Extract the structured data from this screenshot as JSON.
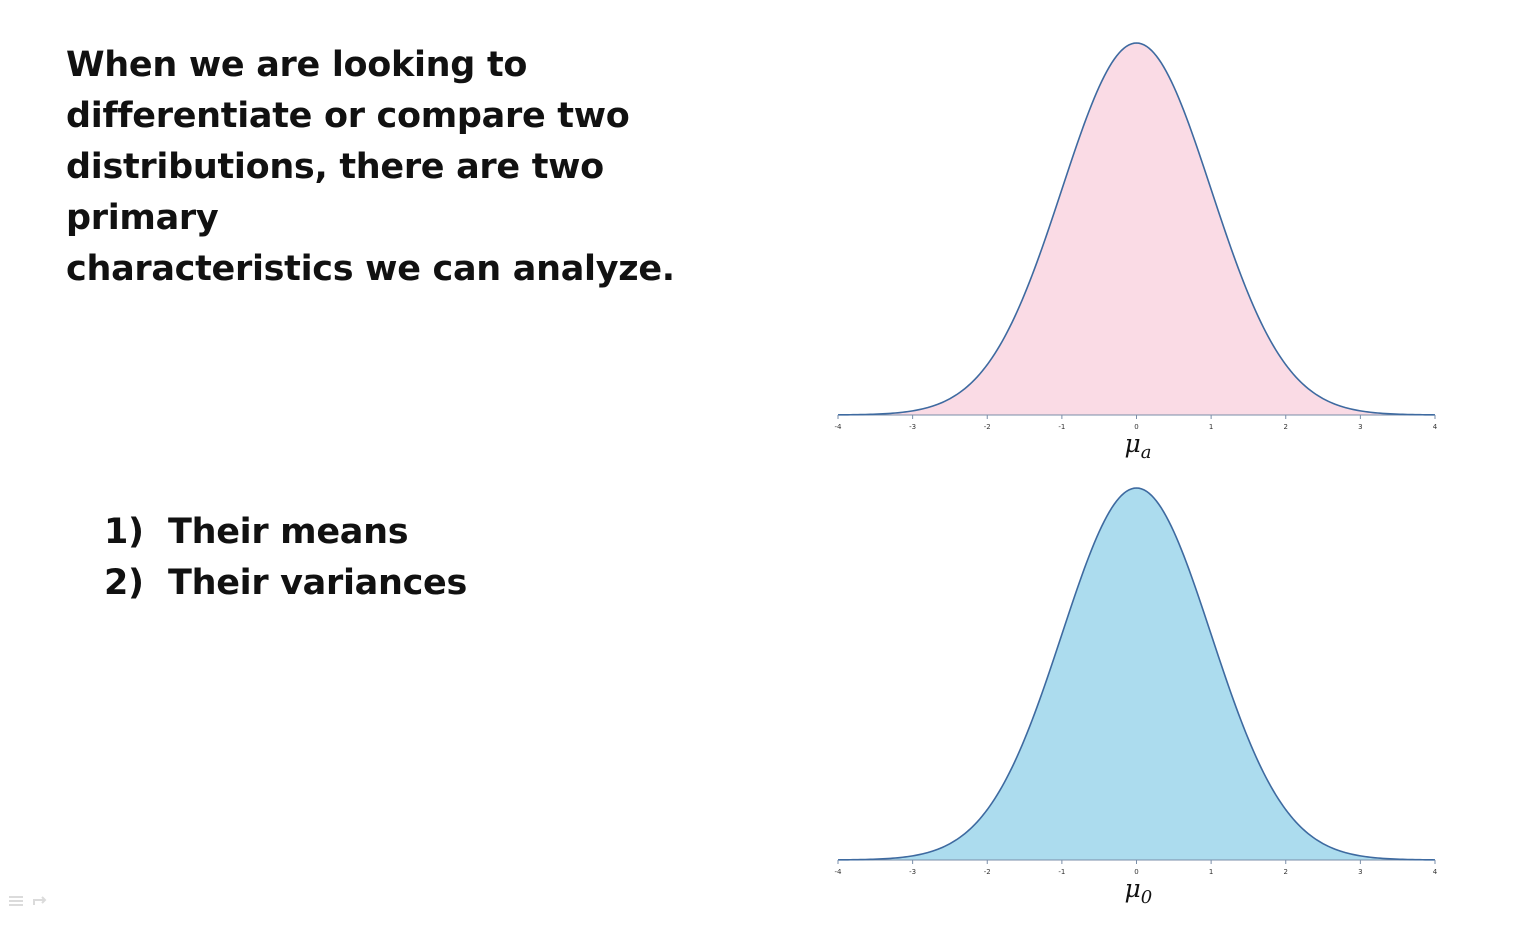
{
  "slide": {
    "intro_text": "When we are looking  to\ndifferentiate or compare two\ndistributions, there are two primary\ncharacteristics we can analyze.",
    "items": [
      {
        "number": "1)",
        "label": "Their means"
      },
      {
        "number": "2)",
        "label": "Their variances"
      }
    ]
  },
  "chart_data": [
    {
      "type": "area",
      "distribution": "standard normal",
      "mean": 0,
      "sd": 1,
      "xlim": [
        -4,
        4
      ],
      "x_ticks": [
        "-4",
        "-3",
        "-2",
        "-1",
        "0",
        "1",
        "2",
        "3",
        "4"
      ],
      "x_label_symbol": "μ",
      "x_label_subscript": "a",
      "fill_color": "#fadbe5",
      "line_color": "#3e6aa0"
    },
    {
      "type": "area",
      "distribution": "standard normal",
      "mean": 0,
      "sd": 1,
      "xlim": [
        -4,
        4
      ],
      "x_ticks": [
        "-4",
        "-3",
        "-2",
        "-1",
        "0",
        "1",
        "2",
        "3",
        "4"
      ],
      "x_label_symbol": "μ",
      "x_label_subscript": "0",
      "fill_color": "#acdcee",
      "line_color": "#3e6aa0"
    }
  ],
  "footer": {
    "icons": [
      "menu-icon",
      "redo-icon"
    ]
  }
}
